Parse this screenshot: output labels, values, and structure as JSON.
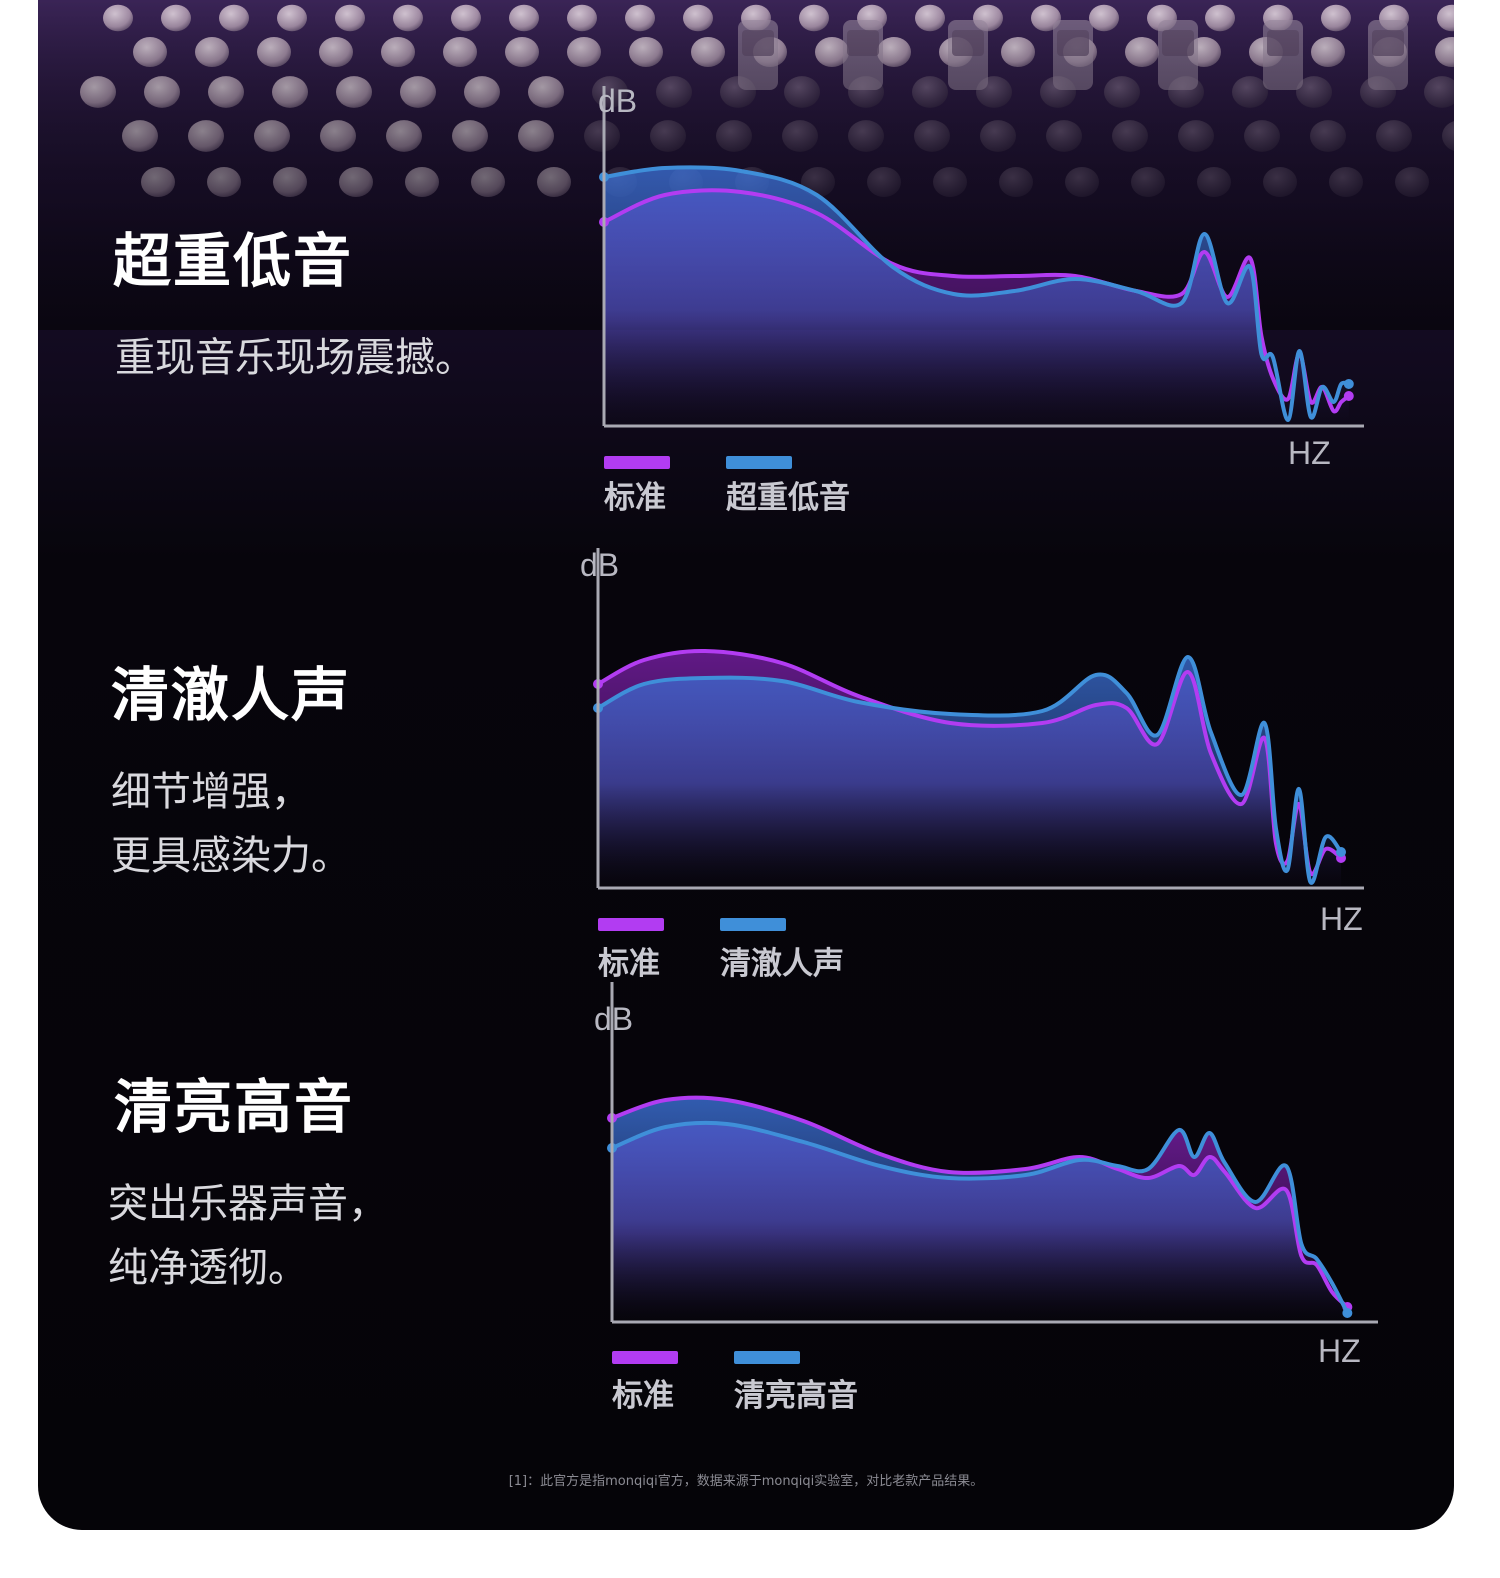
{
  "sections": [
    {
      "heading": "超重低音",
      "description": [
        "重现音乐现场震撼。"
      ]
    },
    {
      "heading": "清澈人声",
      "description": [
        "细节增强，",
        "更具感染力。"
      ]
    },
    {
      "heading": "清亮高音",
      "description": [
        "突出乐器声音，",
        "纯净透彻。"
      ]
    }
  ],
  "footnote": "[1]：此官方是指monqiqi官方，数据来源于monqiqi实验室，对比老款产品结果。",
  "colors": {
    "standard": "#b23cf2",
    "compare": "#3f8fd9",
    "axis": "#a9a9b3",
    "fill_purple": "#7a1fa8",
    "fill_blue": "#3b6fd4"
  },
  "chart_data": [
    {
      "type": "line",
      "ylabel": "dB",
      "xlabel": "HZ",
      "xlim": [
        0,
        100
      ],
      "ylim": [
        0,
        100
      ],
      "series": [
        {
          "name": "标准",
          "x": [
            0,
            8,
            18,
            28,
            38,
            46,
            54,
            62,
            70,
            76,
            79,
            82,
            85,
            86.5,
            88,
            90,
            91.5,
            93,
            94.5,
            96,
            97,
            98
          ],
          "y": [
            68,
            77,
            78,
            71,
            54,
            50,
            50,
            50,
            45,
            44,
            58,
            43,
            56,
            30,
            16,
            9,
            24,
            8,
            13,
            5,
            8,
            10
          ]
        },
        {
          "name": "超重低音",
          "x": [
            0,
            8,
            18,
            28,
            38,
            46,
            54,
            62,
            70,
            76,
            79,
            82,
            85,
            86.5,
            88,
            90,
            91.5,
            93,
            94.5,
            96,
            97,
            98
          ],
          "y": [
            83,
            86,
            85,
            77,
            53,
            44,
            45,
            49,
            45,
            41,
            64,
            41,
            53,
            24,
            23,
            2,
            25,
            3,
            13,
            8,
            14,
            14
          ]
        }
      ]
    },
    {
      "type": "line",
      "ylabel": "dB",
      "xlabel": "HZ",
      "xlim": [
        0,
        100
      ],
      "ylim": [
        0,
        100
      ],
      "series": [
        {
          "name": "标准",
          "x": [
            0,
            6,
            14,
            24,
            34,
            46,
            58,
            65,
            69,
            73,
            77,
            80,
            84,
            87,
            88.5,
            90,
            91.5,
            93,
            95,
            97
          ],
          "y": [
            68,
            76,
            79,
            75,
            64,
            55,
            55,
            61,
            60,
            48,
            72,
            45,
            28,
            50,
            15,
            9,
            28,
            5,
            13,
            10
          ]
        },
        {
          "name": "清澈人声",
          "x": [
            0,
            6,
            14,
            24,
            34,
            46,
            58,
            65,
            69,
            73,
            77,
            80,
            84,
            87,
            88.5,
            90,
            91.5,
            93,
            95,
            97
          ],
          "y": [
            60,
            68,
            70,
            69,
            62,
            58,
            59,
            71,
            65,
            51,
            77,
            52,
            31,
            55,
            20,
            6,
            33,
            2,
            17,
            12
          ]
        }
      ]
    },
    {
      "type": "line",
      "ylabel": "dB",
      "xlabel": "HZ",
      "xlim": [
        0,
        100
      ],
      "ylim": [
        0,
        100
      ],
      "series": [
        {
          "name": "标准",
          "x": [
            0,
            7,
            15,
            25,
            35,
            44,
            54,
            61,
            66,
            70,
            74,
            76,
            78,
            80,
            84,
            88,
            90,
            92,
            94,
            96
          ],
          "y": [
            68,
            74,
            74,
            67,
            56,
            50,
            51,
            55,
            51,
            48,
            52,
            49,
            55,
            50,
            38,
            44,
            22,
            19,
            10,
            5
          ]
        },
        {
          "name": "清亮高音",
          "x": [
            0,
            7,
            15,
            25,
            35,
            44,
            54,
            61,
            66,
            70,
            74,
            76,
            78,
            80,
            84,
            88,
            90,
            92,
            94,
            96
          ],
          "y": [
            58,
            65,
            66,
            60,
            52,
            48,
            49,
            54,
            52,
            51,
            64,
            55,
            63,
            53,
            40,
            52,
            26,
            21,
            13,
            3
          ]
        }
      ]
    }
  ]
}
